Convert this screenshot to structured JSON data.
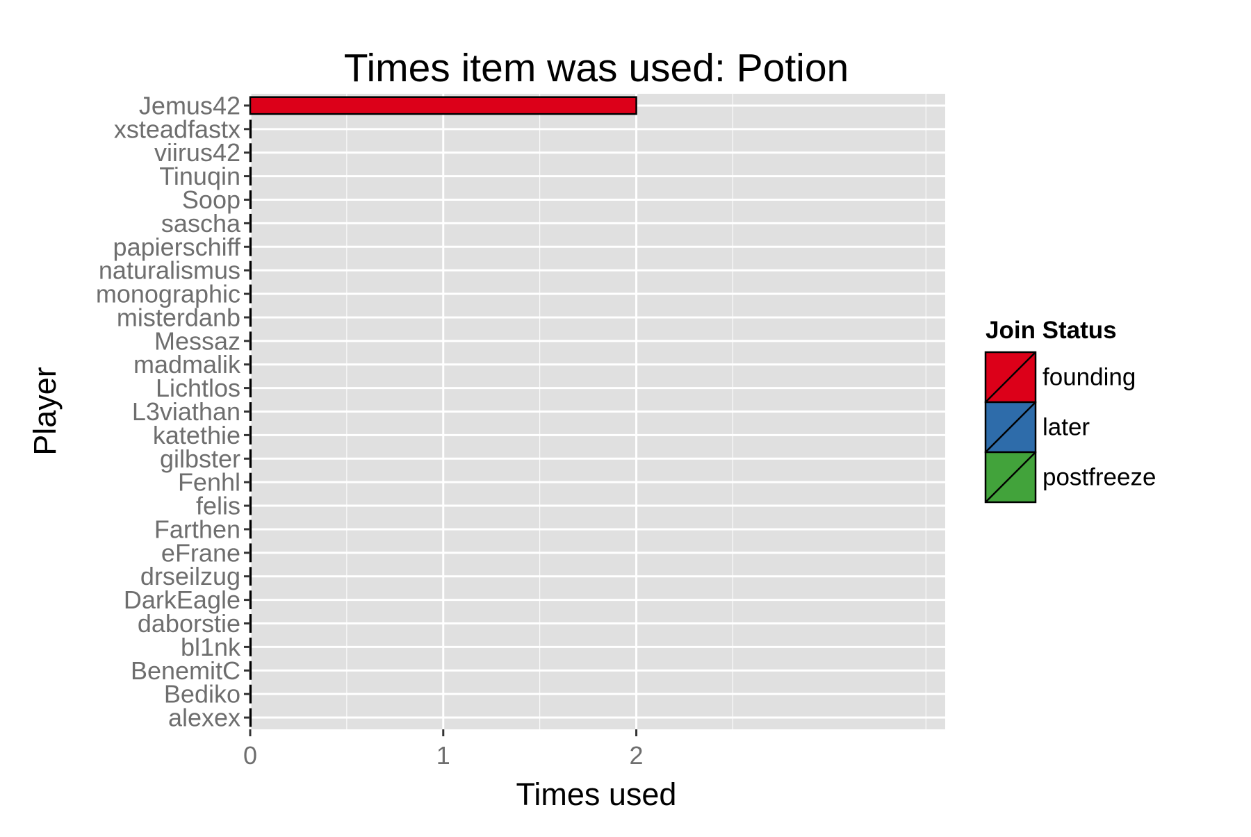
{
  "chart_data": {
    "type": "bar",
    "orientation": "horizontal",
    "title": "Times item was used: Potion",
    "xlabel": "Times used",
    "ylabel": "Player",
    "xlim": [
      0,
      3.6
    ],
    "x_ticks": [
      "0",
      "1",
      "2"
    ],
    "grid": true,
    "legend_position": "right",
    "legend": {
      "title": "Join Status",
      "entries": [
        {
          "label": "founding",
          "color": "#DC0019"
        },
        {
          "label": "later",
          "color": "#2E6CAA"
        },
        {
          "label": "postfreeze",
          "color": "#42A33B"
        }
      ]
    },
    "categories": [
      "Jemus42",
      "xsteadfastx",
      "viirus42",
      "Tinuqin",
      "Soop",
      "sascha",
      "papierschiff",
      "naturalismus",
      "monographic",
      "misterdanb",
      "Messaz",
      "madmalik",
      "Lichtlos",
      "L3viathan",
      "katethie",
      "gilbster",
      "Fenhl",
      "felis",
      "Farthen",
      "eFrane",
      "drseilzug",
      "DarkEagle",
      "daborstie",
      "bl1nk",
      "BenemitC",
      "Bediko",
      "alexex"
    ],
    "values": [
      2,
      0,
      0,
      0,
      0,
      0,
      0,
      0,
      0,
      0,
      0,
      0,
      0,
      0,
      0,
      0,
      0,
      0,
      0,
      0,
      0,
      0,
      0,
      0,
      0,
      0,
      0
    ],
    "status": [
      "founding",
      "founding",
      "founding",
      "founding",
      "founding",
      "founding",
      "founding",
      "founding",
      "founding",
      "founding",
      "founding",
      "founding",
      "founding",
      "founding",
      "founding",
      "founding",
      "founding",
      "founding",
      "founding",
      "founding",
      "founding",
      "founding",
      "founding",
      "founding",
      "founding",
      "founding",
      "founding"
    ],
    "colors": {
      "panel_bg": "#E0E0E0",
      "grid": "#FFFFFF",
      "tick_text": "#6E6E6E",
      "bar_outline": "#000000"
    }
  }
}
